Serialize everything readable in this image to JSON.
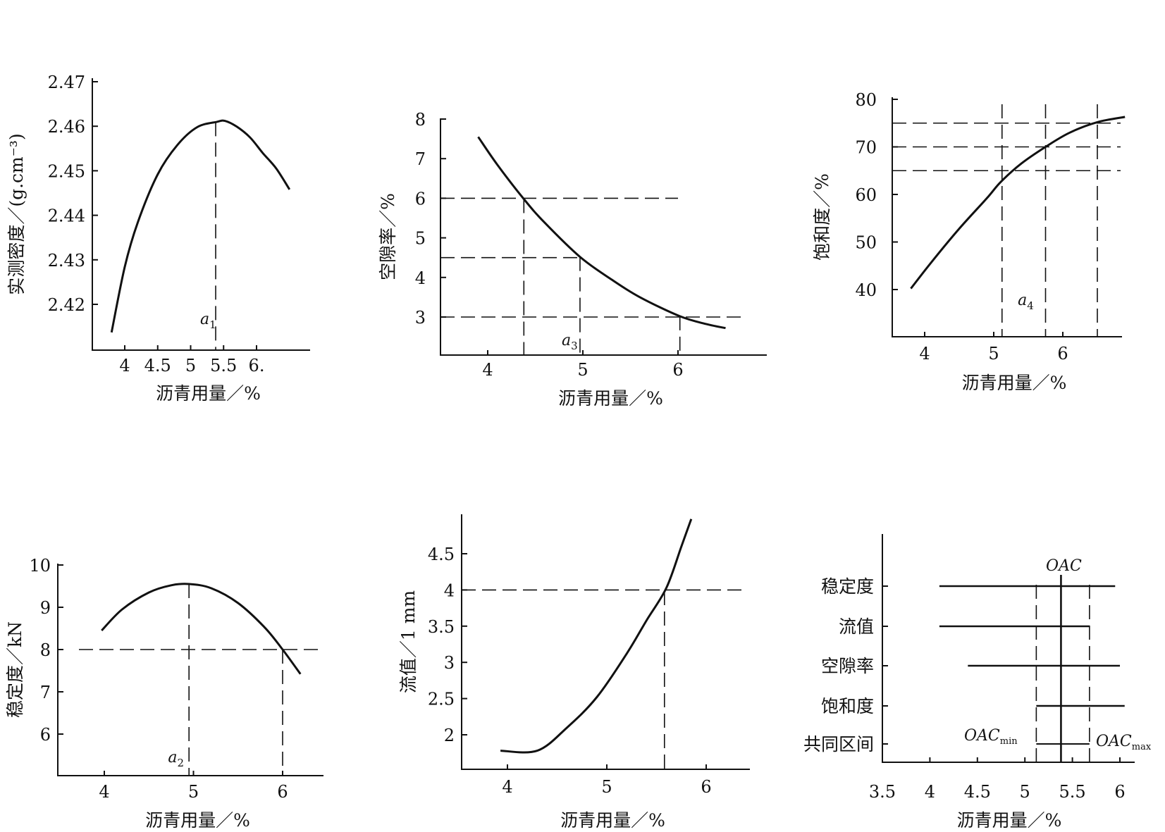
{
  "chart_data": [
    {
      "type": "line",
      "xlabel": "沥青用量／%",
      "ylabel": "实测密度／(g.cm⁻³)",
      "xlim": [
        3.5,
        6.8
      ],
      "ylim": [
        2.41,
        2.47
      ],
      "x_ticks": [
        4,
        4.5,
        5,
        5.5,
        6
      ],
      "x_tick_labels": [
        "4",
        "4.5",
        "5",
        "5.5",
        "6."
      ],
      "y_ticks": [
        2.42,
        2.43,
        2.44,
        2.45,
        2.46,
        2.47
      ],
      "y_tick_labels": [
        "2.42",
        "2.43",
        "2.44",
        "2.45",
        "2.46",
        "2.47"
      ],
      "series": [
        {
          "x": [
            3.8,
            4.0,
            4.2,
            4.5,
            4.8,
            5.1,
            5.4,
            5.52,
            5.7,
            5.9,
            6.1,
            6.3,
            6.5
          ],
          "y": [
            2.4137,
            2.4284,
            2.4385,
            2.4492,
            2.4558,
            2.4598,
            2.461,
            2.4612,
            2.4599,
            2.4575,
            2.4539,
            2.4505,
            2.4458
          ]
        }
      ],
      "reference_lines": [
        {
          "axis": "x",
          "value": 5.38
        }
      ],
      "annotations": [
        {
          "text": "a",
          "sub": "1",
          "x": 5.38
        }
      ]
    },
    {
      "type": "line",
      "xlabel": "沥青用量／%",
      "ylabel": "空隙率／%",
      "xlim": [
        3.5,
        7.0
      ],
      "ylim": [
        2.0,
        8.0
      ],
      "x_ticks": [
        4,
        5,
        6
      ],
      "x_tick_labels": [
        "4",
        "5",
        "6"
      ],
      "y_ticks": [
        3,
        4,
        5,
        6,
        7,
        8
      ],
      "y_tick_labels": [
        "3",
        "4",
        "5",
        "6",
        "7",
        "8"
      ],
      "series": [
        {
          "x": [
            3.9,
            4.1,
            4.38,
            4.6,
            4.97,
            5.3,
            5.6,
            6.02,
            6.3,
            6.5
          ],
          "y": [
            7.55,
            6.85,
            5.98,
            5.38,
            4.52,
            3.95,
            3.5,
            3.02,
            2.82,
            2.72
          ]
        }
      ],
      "reference_lines": [
        {
          "axis": "y",
          "value": 6.0,
          "x_end": 6.0
        },
        {
          "axis": "y",
          "value": 4.5,
          "x_end": 4.97
        },
        {
          "axis": "y",
          "value": 3.0,
          "x_end": 6.7
        },
        {
          "axis": "x",
          "value": 4.38
        },
        {
          "axis": "x",
          "value": 4.97
        },
        {
          "axis": "x",
          "value": 6.02
        }
      ],
      "annotations": [
        {
          "text": "a",
          "sub": "3",
          "x": 4.97
        }
      ]
    },
    {
      "type": "line",
      "xlabel": "沥青用量／%",
      "ylabel": "饱和度／%",
      "xlim": [
        3.5,
        6.9
      ],
      "ylim": [
        30,
        80
      ],
      "x_ticks": [
        4,
        5,
        6
      ],
      "x_tick_labels": [
        "4",
        "5",
        "6"
      ],
      "y_ticks": [
        40,
        50,
        60,
        70,
        80
      ],
      "y_tick_labels": [
        "40",
        "50",
        "60",
        "70",
        "80"
      ],
      "series": [
        {
          "x": [
            3.8,
            4.1,
            4.5,
            4.9,
            5.1,
            5.4,
            5.75,
            6.1,
            6.5,
            6.9
          ],
          "y": [
            40.2,
            45.8,
            52.8,
            59.2,
            62.6,
            66.5,
            70.0,
            73.0,
            75.2,
            76.3
          ]
        }
      ],
      "reference_lines": [
        {
          "axis": "y",
          "value": 75
        },
        {
          "axis": "y",
          "value": 70
        },
        {
          "axis": "y",
          "value": 65
        },
        {
          "axis": "x",
          "value": 5.12
        },
        {
          "axis": "x",
          "value": 5.75
        },
        {
          "axis": "x",
          "value": 6.5
        }
      ],
      "annotations": [
        {
          "text": "a",
          "sub": "4",
          "x": 5.45
        }
      ]
    },
    {
      "type": "line",
      "xlabel": "沥青用量／%",
      "ylabel": "稳定度／kN",
      "xlim": [
        3.5,
        6.0
      ],
      "ylim": [
        5.0,
        10.0
      ],
      "x_ticks": [
        4,
        5,
        6
      ],
      "x_tick_labels": [
        "4",
        "5",
        "6"
      ],
      "y_ticks": [
        6,
        7,
        8,
        9,
        10
      ],
      "y_tick_labels": [
        "6",
        "7",
        "8",
        "9",
        "10"
      ],
      "series": [
        {
          "x": [
            3.97,
            4.2,
            4.5,
            4.75,
            4.95,
            5.2,
            5.5,
            5.8,
            6.0,
            6.2
          ],
          "y": [
            8.45,
            8.95,
            9.35,
            9.52,
            9.55,
            9.45,
            9.1,
            8.52,
            8.0,
            7.42
          ]
        }
      ],
      "reference_lines": [
        {
          "axis": "y",
          "value": 8.0
        },
        {
          "axis": "x",
          "value": 4.95
        },
        {
          "axis": "x",
          "value": 6.0
        }
      ],
      "annotations": [
        {
          "text": "a",
          "sub": "2",
          "x": 4.73
        }
      ]
    },
    {
      "type": "line",
      "xlabel": "沥青用量／%",
      "ylabel": "流值／1 mm",
      "xlim": [
        3.5,
        6.5
      ],
      "ylim": [
        1.5,
        5.0
      ],
      "x_ticks": [
        4,
        5,
        6
      ],
      "x_tick_labels": [
        "4",
        "5",
        "6"
      ],
      "y_ticks": [
        2,
        2.5,
        3,
        3.5,
        4,
        4.5
      ],
      "y_tick_labels": [
        "2",
        "2.5",
        "3",
        "3.5",
        "4",
        "4.5"
      ],
      "series": [
        {
          "x": [
            3.93,
            4.3,
            4.6,
            4.9,
            5.2,
            5.4,
            5.6,
            5.75,
            5.85
          ],
          "y": [
            1.78,
            1.78,
            2.1,
            2.52,
            3.12,
            3.58,
            4.03,
            4.6,
            4.98
          ]
        }
      ],
      "reference_lines": [
        {
          "axis": "y",
          "value": 4.0
        },
        {
          "axis": "x",
          "value": 5.58
        }
      ]
    },
    {
      "type": "bar",
      "orientation": "horizontal-range",
      "xlabel": "沥青用量／%",
      "xlim": [
        3.5,
        6.2
      ],
      "x_ticks": [
        3.5,
        4,
        4.5,
        5,
        5.5,
        6
      ],
      "x_tick_labels": [
        "3.5",
        "4",
        "4.5",
        "5",
        "5.5",
        "6"
      ],
      "categories": [
        "稳定度",
        "流值",
        "空隙率",
        "饱和度",
        "共同区间"
      ],
      "ranges": [
        [
          4.1,
          5.95
        ],
        [
          4.1,
          5.68
        ],
        [
          4.4,
          6.0
        ],
        [
          5.12,
          6.05
        ],
        [
          5.12,
          5.68
        ]
      ],
      "oac": 5.38,
      "oac_min": 5.12,
      "oac_max": 5.68,
      "labels": {
        "oac": "OAC",
        "oac_min": "OAC",
        "oac_min_sub": "min",
        "oac_max": "OAC",
        "oac_max_sub": "max"
      }
    }
  ]
}
